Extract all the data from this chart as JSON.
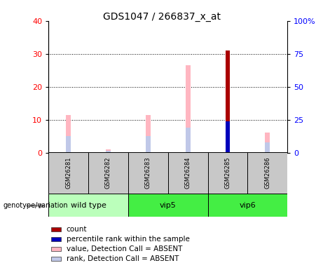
{
  "title": "GDS1047 / 266837_x_at",
  "samples": [
    "GSM26281",
    "GSM26282",
    "GSM26283",
    "GSM26284",
    "GSM26285",
    "GSM26286"
  ],
  "value_bars": [
    11.5,
    1.0,
    11.5,
    26.5,
    0.0,
    6.0
  ],
  "rank_bars": [
    5.0,
    0.5,
    5.0,
    7.5,
    0.0,
    3.0
  ],
  "count_bar_val": 31.0,
  "count_bar_idx": 4,
  "percentile_bar_val": 9.5,
  "percentile_bar_idx": 4,
  "ylim_left": [
    0,
    40
  ],
  "ylim_right": [
    0,
    100
  ],
  "yticks_left": [
    0,
    10,
    20,
    30,
    40
  ],
  "yticks_right": [
    0,
    25,
    50,
    75,
    100
  ],
  "ytick_labels_right": [
    "0",
    "25",
    "50",
    "75",
    "100%"
  ],
  "color_value": "#FFB6C1",
  "color_rank": "#C0C8E8",
  "color_count": "#AA0000",
  "color_percentile": "#0000BB",
  "bg_color_label": "#C8C8C8",
  "bg_color_group_wt": "#BBFFBB",
  "bg_color_group_vip": "#44EE44",
  "bar_width": 0.12,
  "group_info": [
    {
      "name": "wild type",
      "start": 0,
      "end": 1,
      "color": "#BBFFBB"
    },
    {
      "name": "vip5",
      "start": 2,
      "end": 3,
      "color": "#44EE44"
    },
    {
      "name": "vip6",
      "start": 4,
      "end": 5,
      "color": "#44EE44"
    }
  ],
  "legend_items": [
    {
      "color": "#AA0000",
      "label": "count"
    },
    {
      "color": "#0000BB",
      "label": "percentile rank within the sample"
    },
    {
      "color": "#FFB6C1",
      "label": "value, Detection Call = ABSENT"
    },
    {
      "color": "#C0C8E8",
      "label": "rank, Detection Call = ABSENT"
    }
  ]
}
